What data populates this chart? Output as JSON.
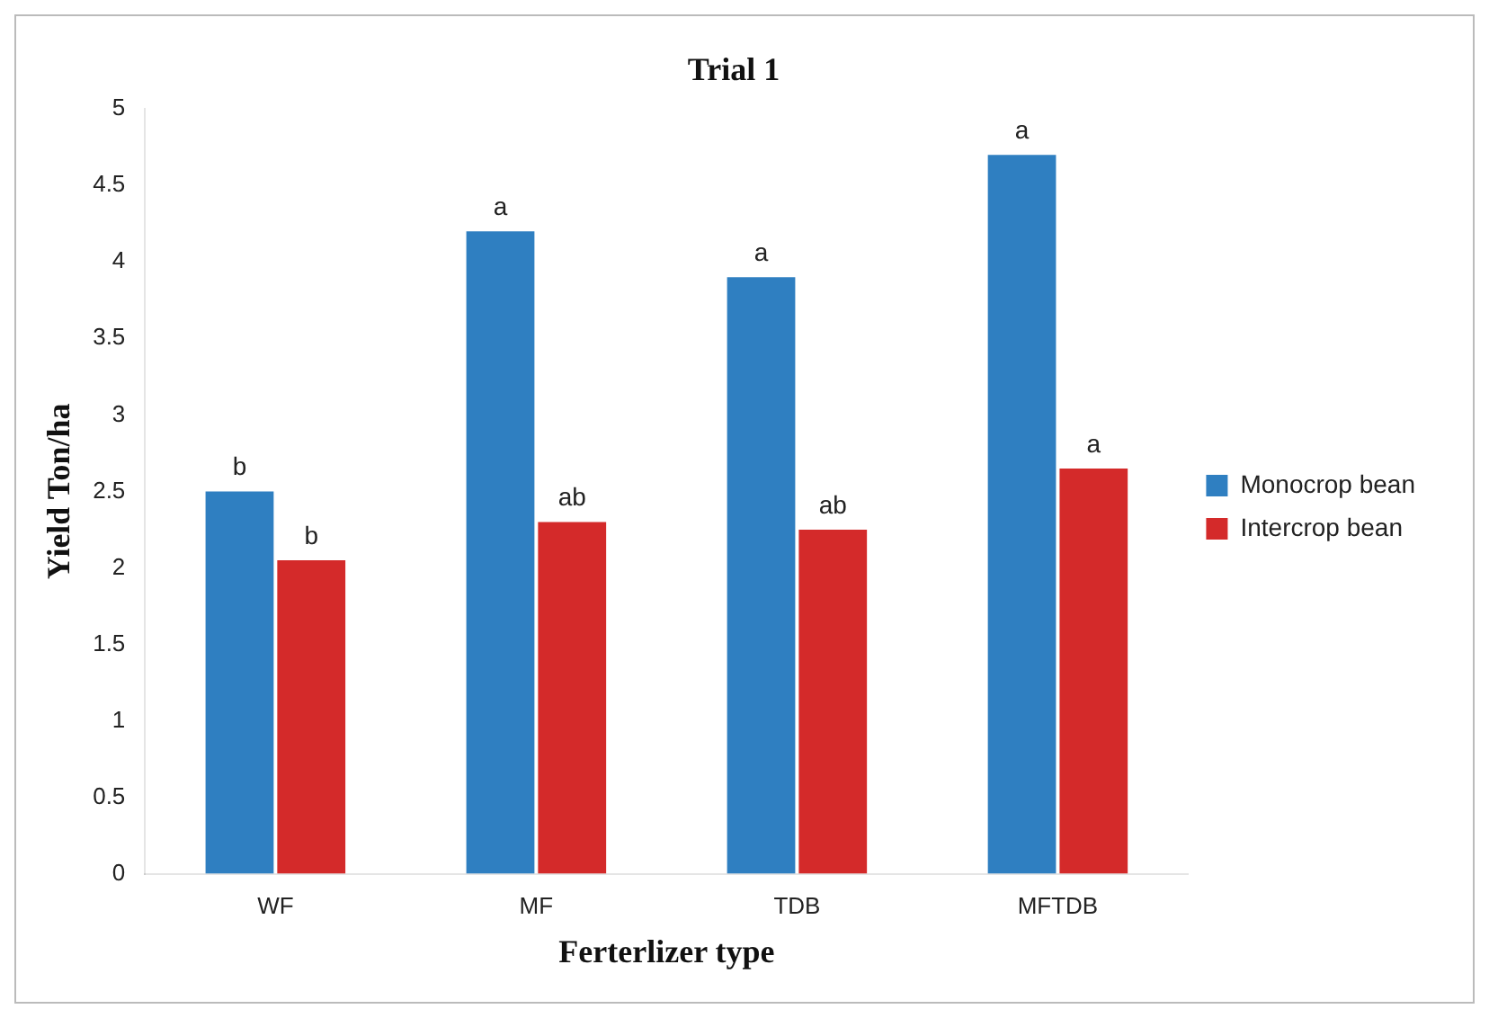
{
  "chart_data": {
    "type": "bar",
    "title": "Trial 1",
    "xlabel": "Ferterlizer type",
    "ylabel": "Yield Ton/ha",
    "categories": [
      "WF",
      "MF",
      "TDB",
      "MFTDB"
    ],
    "series": [
      {
        "name": "Monocrop bean",
        "color": "#2f7fc1",
        "values": [
          2.5,
          4.2,
          3.9,
          4.7
        ],
        "value_labels": [
          "b",
          "a",
          "a",
          "a"
        ]
      },
      {
        "name": "Intercrop bean",
        "color": "#d42a2a",
        "values": [
          2.05,
          2.3,
          2.25,
          2.65
        ],
        "value_labels": [
          "b",
          "ab",
          "ab",
          "a"
        ]
      }
    ],
    "ylim": [
      0,
      5
    ],
    "yticks": [
      0,
      0.5,
      1,
      1.5,
      2,
      2.5,
      3,
      3.5,
      4,
      4.5,
      5
    ],
    "grid": false,
    "legend": "right"
  }
}
